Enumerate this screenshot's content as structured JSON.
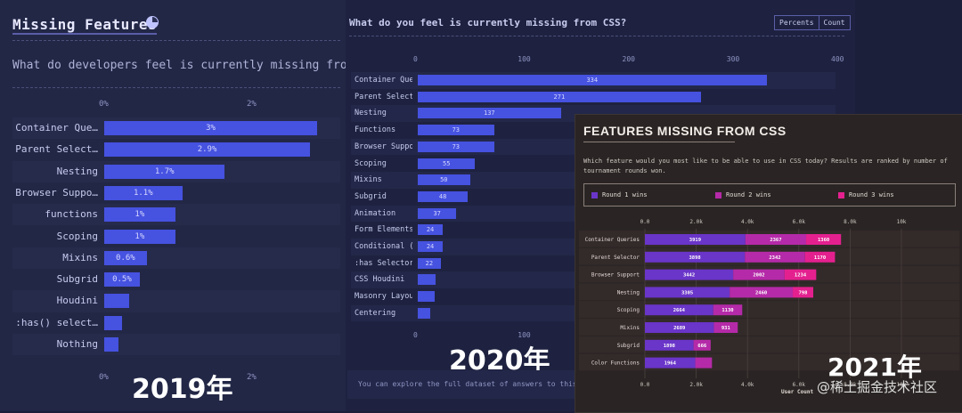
{
  "panel_2019": {
    "title": "Missing Features",
    "subtitle": "What do developers feel is currently missing from",
    "year": "2019年",
    "ticks": [
      "0%",
      "2%"
    ],
    "chart_data": {
      "type": "bar",
      "categories": [
        "Container Que…",
        "Parent Select…",
        "Nesting",
        "Browser Suppo…",
        "functions",
        "Scoping",
        "Mixins",
        "Subgrid",
        "Houdini",
        ":has() select…",
        "Nothing"
      ],
      "values": [
        3,
        2.9,
        1.7,
        1.1,
        1,
        1,
        0.6,
        0.5,
        0.35,
        0.25,
        0.2
      ],
      "value_labels": [
        "3%",
        "2.9%",
        "1.7%",
        "1.1%",
        "1%",
        "1%",
        "0.6%",
        "0.5%",
        "",
        "",
        ""
      ],
      "xlim": [
        0,
        3.1
      ]
    }
  },
  "panel_2020": {
    "title": "What do you feel is currently missing from CSS?",
    "toggle": [
      "Percents",
      "Count"
    ],
    "year": "2020年",
    "ticks": [
      "0",
      "100",
      "200",
      "300",
      "400"
    ],
    "footer": "You can explore the full dataset of answers to this quest",
    "chart_data": {
      "type": "bar",
      "categories": [
        "Container Que…",
        "Parent Selector",
        "Nesting",
        "Functions",
        "Browser Suppo…",
        "Scoping",
        "Mixins",
        "Subgrid",
        "Animation",
        "Form Elements…",
        "Conditional (…",
        ":has Selector",
        "CSS Houdini",
        "Masonry Layou…",
        "Centering"
      ],
      "values": [
        334,
        271,
        137,
        73,
        73,
        55,
        50,
        48,
        37,
        24,
        24,
        22,
        17,
        16,
        12
      ],
      "value_labels": [
        "334",
        "271",
        "137",
        "73",
        "73",
        "55",
        "50",
        "48",
        "37",
        "24",
        "24",
        "22",
        "",
        "",
        ""
      ],
      "xlim": [
        0,
        400
      ]
    }
  },
  "panel_2021": {
    "title": "FEATURES MISSING FROM CSS",
    "description": "Which feature would you most like to be able to use in CSS today? Results are ranked by number of tournament rounds won.",
    "year": "2021年",
    "ticks": [
      "0.0",
      "2.0k",
      "4.0k",
      "6.0k",
      "8.0k",
      "10k"
    ],
    "xlabel": "User Count",
    "chart_data": {
      "type": "bar",
      "stacked": true,
      "categories": [
        "Container Queries",
        "Parent Selector",
        "Browser Support",
        "Nesting",
        "Scoping",
        "Mixins",
        "Subgrid",
        "Color Functions"
      ],
      "series": [
        {
          "name": "Round 1 wins",
          "color": "#6a35c9",
          "values": [
            3919,
            3898,
            3442,
            3305,
            2664,
            2689,
            1898,
            1964
          ],
          "labels": [
            "3919",
            "3898",
            "3442",
            "3305",
            "2664",
            "2689",
            "1898",
            "1964"
          ]
        },
        {
          "name": "Round 2 wins",
          "color": "#b52aa8",
          "values": [
            2367,
            2342,
            2002,
            2460,
            1130,
            931,
            666,
            650
          ],
          "labels": [
            "2367",
            "2342",
            "2002",
            "2460",
            "1130",
            "931",
            "666",
            ""
          ]
        },
        {
          "name": "Round 3 wins",
          "color": "#e4208f",
          "values": [
            1360,
            1170,
            1234,
            798,
            0,
            0,
            0,
            0
          ],
          "labels": [
            "1360",
            "1170",
            "1234",
            "798",
            "",
            "",
            "",
            ""
          ]
        }
      ],
      "xlim": [
        0,
        10000
      ]
    }
  },
  "watermark": "@稀土掘金技术社区"
}
